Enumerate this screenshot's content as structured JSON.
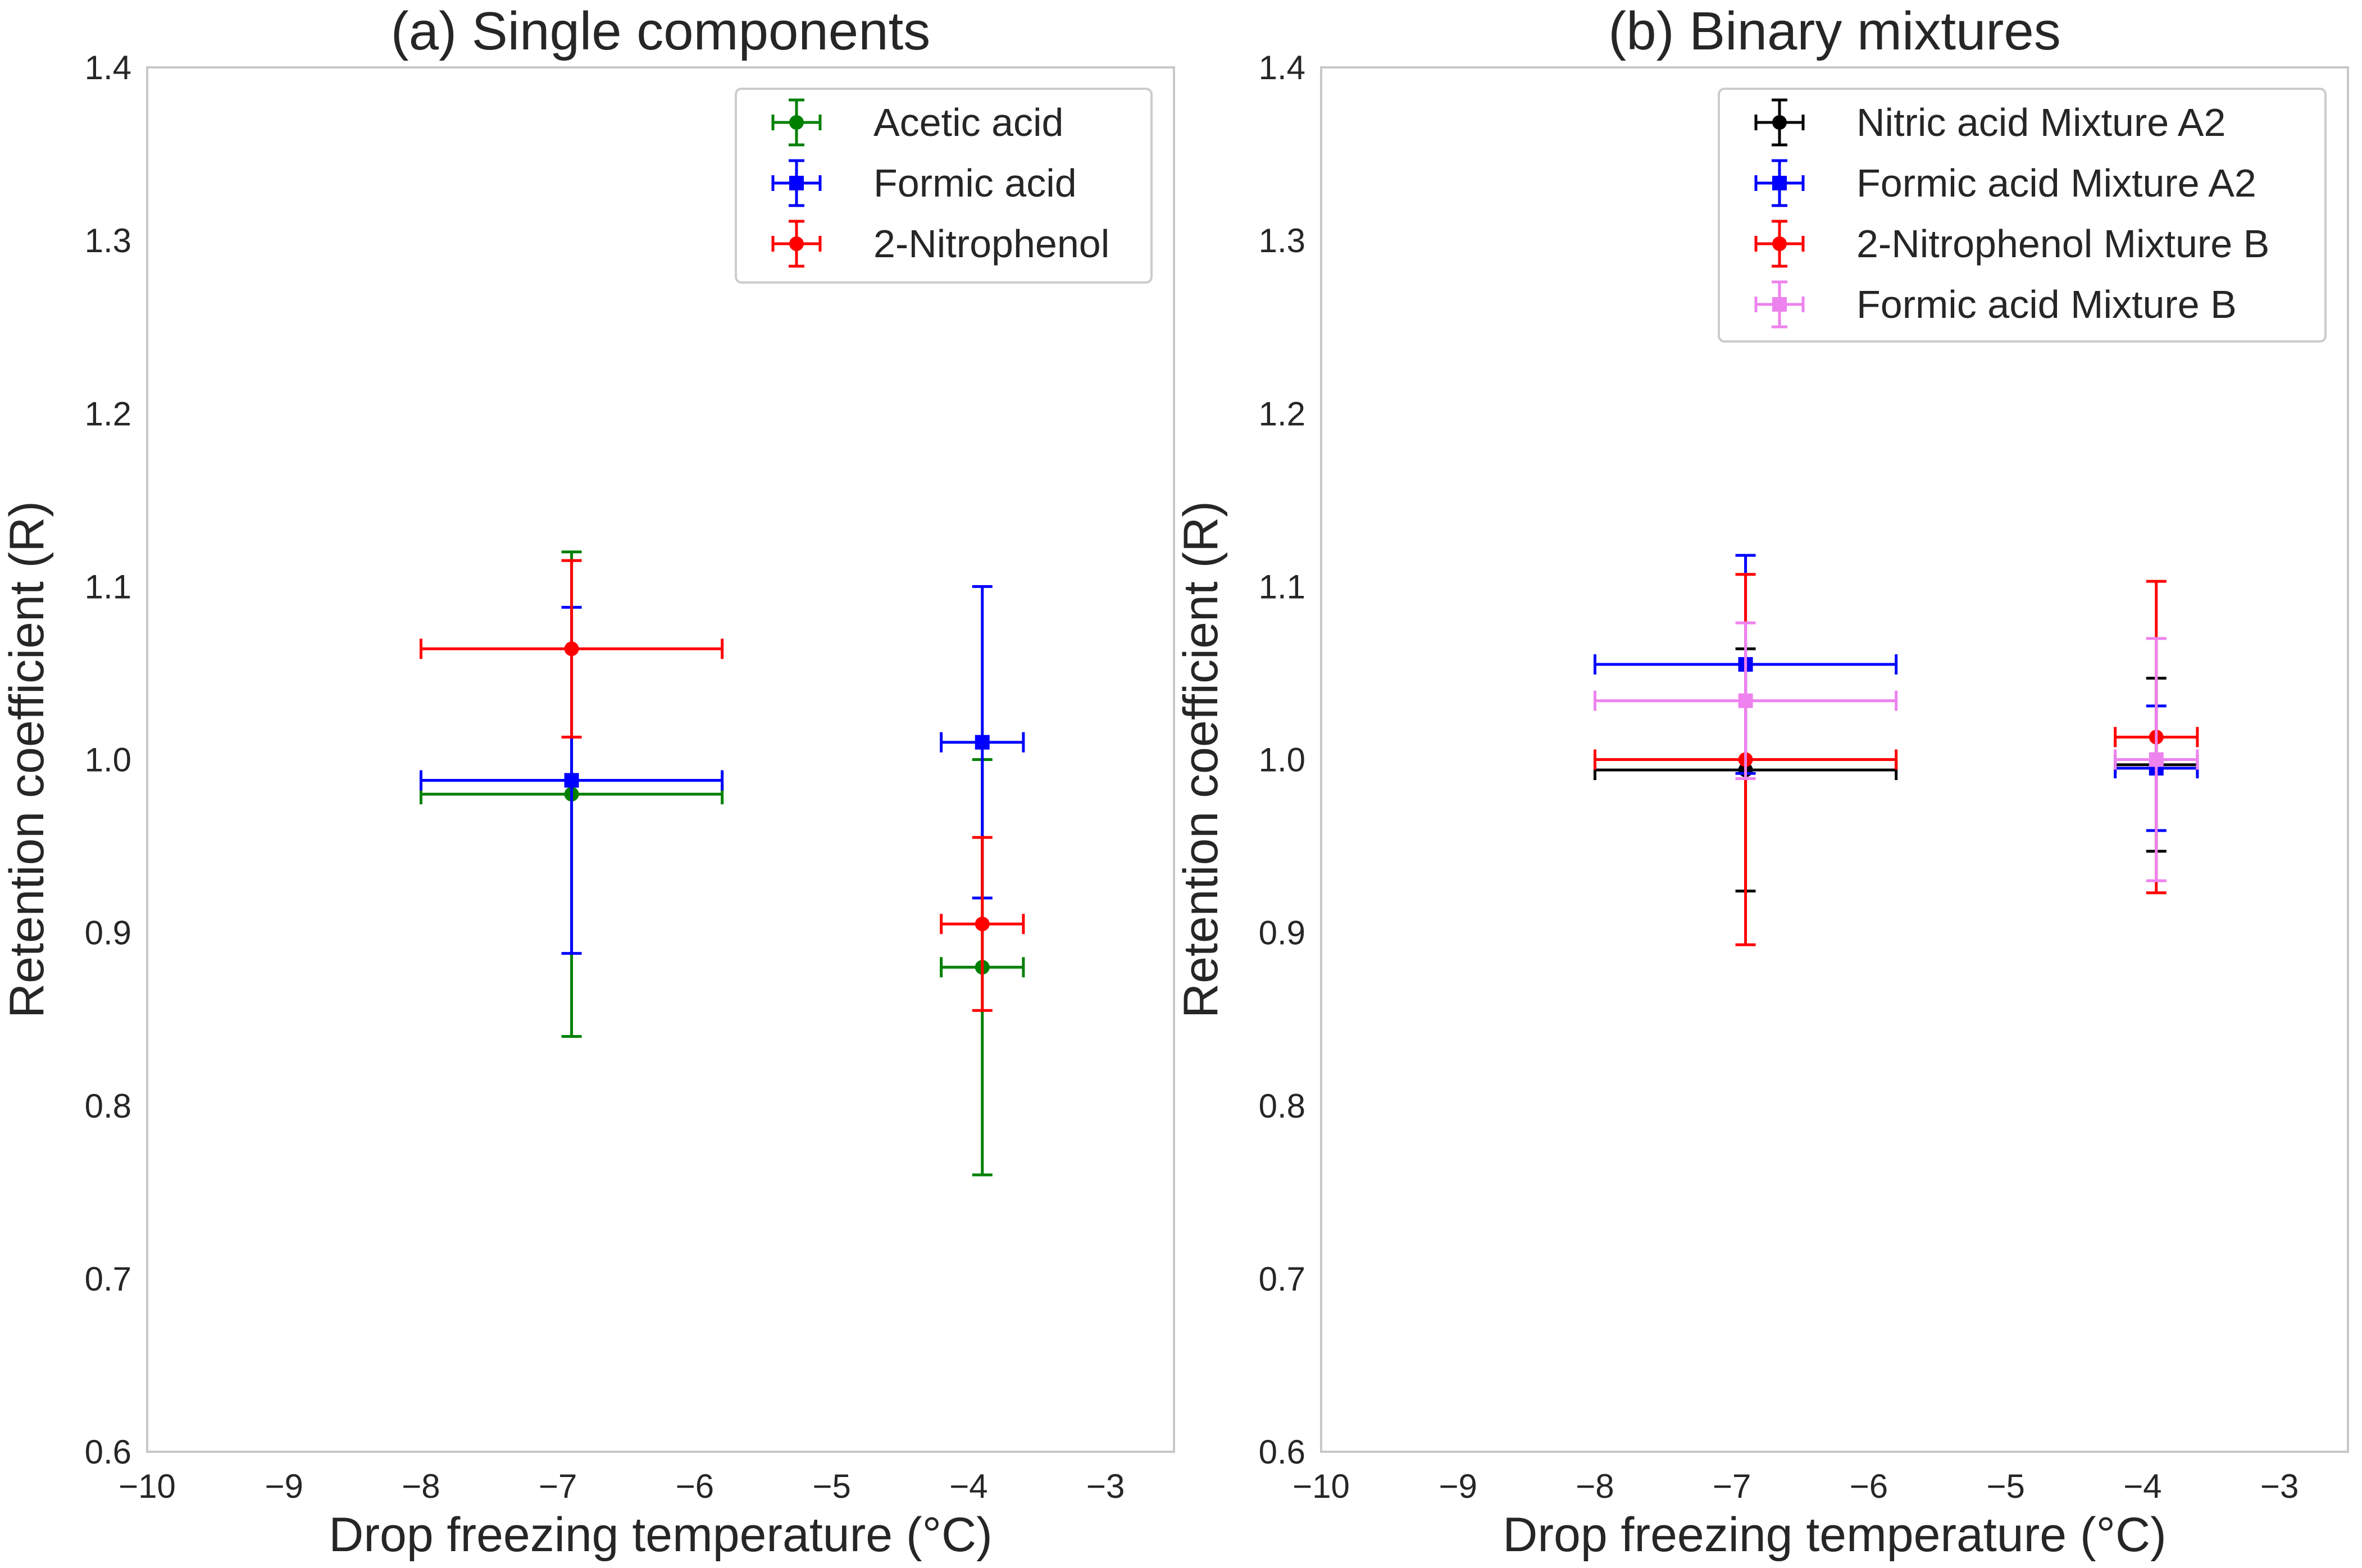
{
  "chart_data": [
    {
      "type": "scatter",
      "title": "(a) Single components",
      "xlabel": "Drop freezing temperature (°C)",
      "ylabel": "Retention coefficient (R)",
      "xlim": [
        -10,
        -2.5
      ],
      "ylim": [
        0.6,
        1.4
      ],
      "xticks": [
        -10,
        -9,
        -8,
        -7,
        -6,
        -5,
        -4,
        -3
      ],
      "yticks": [
        0.6,
        0.7,
        0.8,
        0.9,
        1.0,
        1.1,
        1.2,
        1.3,
        1.4
      ],
      "xtick_labels": [
        "−10",
        "−9",
        "−8",
        "−7",
        "−6",
        "−5",
        "−4",
        "−3"
      ],
      "ytick_labels": [
        "0.6",
        "0.7",
        "0.8",
        "0.9",
        "1.0",
        "1.1",
        "1.2",
        "1.3",
        "1.4"
      ],
      "grid": false,
      "legend_position": "top-right",
      "series": [
        {
          "name": "Acetic acid",
          "color": "#008000",
          "marker": "circle",
          "points": [
            {
              "x": -6.9,
              "y": 0.98,
              "xerr": 1.1,
              "yerr": 0.14
            },
            {
              "x": -3.9,
              "y": 0.88,
              "xerr": 0.3,
              "yerr": 0.12
            }
          ]
        },
        {
          "name": "Formic acid",
          "color": "#0000ff",
          "marker": "square",
          "points": [
            {
              "x": -6.9,
              "y": 0.988,
              "xerr": 1.1,
              "yerr": 0.1
            },
            {
              "x": -3.9,
              "y": 1.01,
              "xerr": 0.3,
              "yerr": 0.09
            }
          ]
        },
        {
          "name": "2-Nitrophenol",
          "color": "#ff0000",
          "marker": "circle",
          "points": [
            {
              "x": -6.9,
              "y": 1.064,
              "xerr": 1.1,
              "yerr": 0.051
            },
            {
              "x": -3.9,
              "y": 0.905,
              "xerr": 0.3,
              "yerr": 0.05
            }
          ]
        }
      ]
    },
    {
      "type": "scatter",
      "title": "(b) Binary mixtures",
      "xlabel": "Drop freezing temperature (°C)",
      "ylabel": "Retention coefficient (R)",
      "xlim": [
        -10,
        -2.5
      ],
      "ylim": [
        0.6,
        1.4
      ],
      "xticks": [
        -10,
        -9,
        -8,
        -7,
        -6,
        -5,
        -4,
        -3
      ],
      "yticks": [
        0.6,
        0.7,
        0.8,
        0.9,
        1.0,
        1.1,
        1.2,
        1.3,
        1.4
      ],
      "xtick_labels": [
        "−10",
        "−9",
        "−8",
        "−7",
        "−6",
        "−5",
        "−4",
        "−3"
      ],
      "ytick_labels": [
        "0.6",
        "0.7",
        "0.8",
        "0.9",
        "1.0",
        "1.1",
        "1.2",
        "1.3",
        "1.4"
      ],
      "grid": false,
      "legend_position": "top-right",
      "series": [
        {
          "name": "Nitric acid Mixture A2",
          "color": "#000000",
          "marker": "circle",
          "points": [
            {
              "x": -6.9,
              "y": 0.994,
              "xerr": 1.1,
              "yerr": 0.07
            },
            {
              "x": -3.9,
              "y": 0.997,
              "xerr": 0.3,
              "yerr": 0.05
            }
          ]
        },
        {
          "name": "Formic acid Mixture A2",
          "color": "#0000ff",
          "marker": "square",
          "points": [
            {
              "x": -6.9,
              "y": 1.055,
              "xerr": 1.1,
              "yerr": 0.063
            },
            {
              "x": -3.9,
              "y": 0.995,
              "xerr": 0.3,
              "yerr": 0.036
            }
          ]
        },
        {
          "name": "2-Nitrophenol Mixture B",
          "color": "#ff0000",
          "marker": "circle",
          "points": [
            {
              "x": -6.9,
              "y": 1.0,
              "xerr": 1.1,
              "yerr": 0.107
            },
            {
              "x": -3.9,
              "y": 1.013,
              "xerr": 0.3,
              "yerr": 0.09
            }
          ]
        },
        {
          "name": "Formic acid Mixture B",
          "color": "#ee82ee",
          "marker": "square",
          "points": [
            {
              "x": -6.9,
              "y": 1.034,
              "xerr": 1.1,
              "yerr": 0.045
            },
            {
              "x": -3.9,
              "y": 1.0,
              "xerr": 0.3,
              "yerr": 0.07
            }
          ]
        }
      ]
    }
  ]
}
